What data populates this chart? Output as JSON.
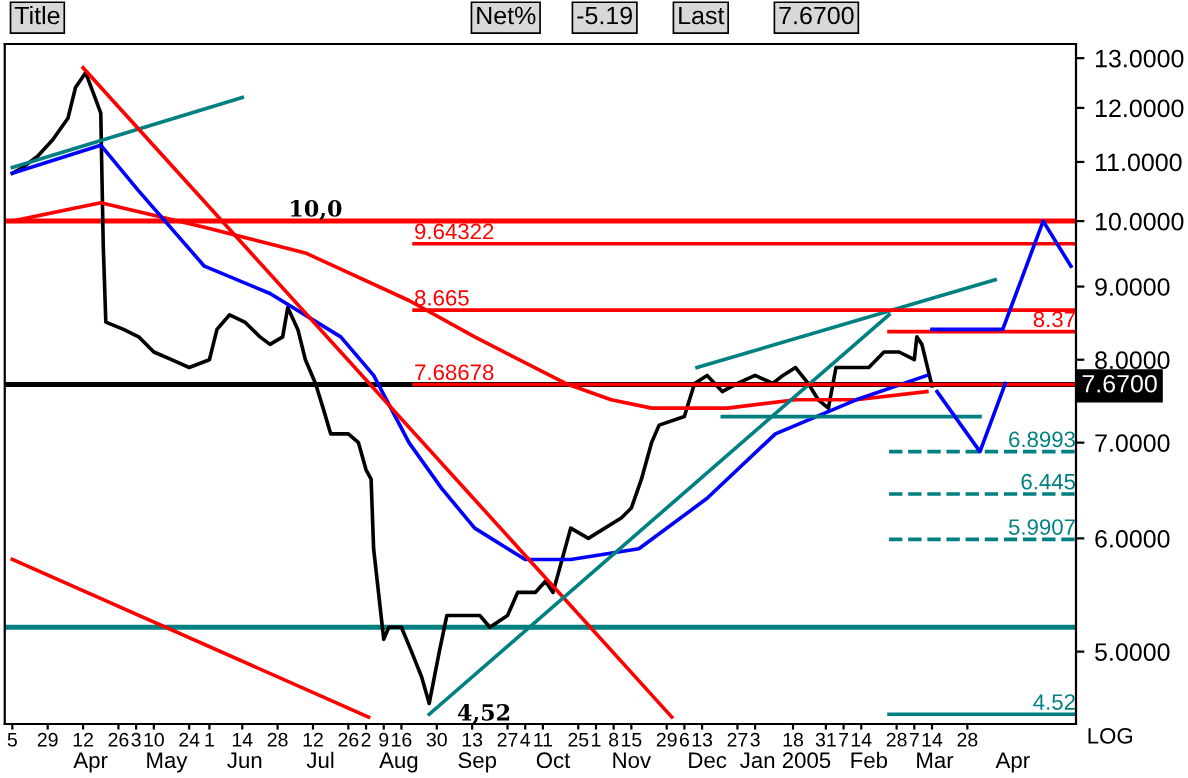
{
  "chart_data": {
    "type": "line",
    "log": "y",
    "grid": false,
    "line_style": "solid",
    "ylabel": "LOG",
    "xlim": [
      "2004-03-12",
      "2005-05-10"
    ],
    "ylim": [
      4.45,
      13.3
    ],
    "yticks": [
      {
        "value": 5,
        "label": "5.0000"
      },
      {
        "value": 6,
        "label": "6.0000"
      },
      {
        "value": 7,
        "label": "7.0000"
      },
      {
        "value": 8,
        "label": "8.0000"
      },
      {
        "value": 9,
        "label": "9.0000"
      },
      {
        "value": 10,
        "label": "10.0000"
      },
      {
        "value": 11,
        "label": "11.0000"
      },
      {
        "value": 12,
        "label": "12.0000"
      },
      {
        "value": 13,
        "label": "13.0000"
      }
    ],
    "xticks": [
      {
        "value": "2004-03-15",
        "label": "5"
      },
      {
        "value": "2004-03-29",
        "label": "29"
      },
      {
        "value": "2004-04-12",
        "label": "12"
      },
      {
        "value": "2004-04-26",
        "label": "26"
      },
      {
        "value": "2004-05-03",
        "label": "3"
      },
      {
        "value": "2004-05-10",
        "label": "10"
      },
      {
        "value": "2004-05-24",
        "label": "24"
      },
      {
        "value": "2004-06-01",
        "label": "1"
      },
      {
        "value": "2004-06-14",
        "label": "14"
      },
      {
        "value": "2004-06-28",
        "label": "28"
      },
      {
        "value": "2004-07-12",
        "label": "12"
      },
      {
        "value": "2004-07-26",
        "label": "26"
      },
      {
        "value": "2004-08-02",
        "label": "2"
      },
      {
        "value": "2004-08-09",
        "label": "9"
      },
      {
        "value": "2004-08-16",
        "label": "16"
      },
      {
        "value": "2004-08-30",
        "label": "30"
      },
      {
        "value": "2004-09-13",
        "label": "13"
      },
      {
        "value": "2004-09-27",
        "label": "27"
      },
      {
        "value": "2004-10-04",
        "label": "4"
      },
      {
        "value": "2004-10-11",
        "label": "11"
      },
      {
        "value": "2004-10-25",
        "label": "25"
      },
      {
        "value": "2004-11-01",
        "label": "1"
      },
      {
        "value": "2004-11-08",
        "label": "8"
      },
      {
        "value": "2004-11-15",
        "label": "15"
      },
      {
        "value": "2004-11-29",
        "label": "29"
      },
      {
        "value": "2004-12-06",
        "label": "6"
      },
      {
        "value": "2004-12-13",
        "label": "13"
      },
      {
        "value": "2004-12-27",
        "label": "27"
      },
      {
        "value": "2005-01-03",
        "label": "3"
      },
      {
        "value": "2005-01-18",
        "label": "18"
      },
      {
        "value": "2005-01-31",
        "label": "31"
      },
      {
        "value": "2005-02-07",
        "label": "7"
      },
      {
        "value": "2005-02-14",
        "label": "14"
      },
      {
        "value": "2005-02-28",
        "label": "28"
      },
      {
        "value": "2005-03-07",
        "label": "7"
      },
      {
        "value": "2005-03-14",
        "label": "14"
      },
      {
        "value": "2005-03-28",
        "label": "28"
      }
    ],
    "x2ticks": [
      {
        "value": "2004-04-15",
        "label": "Apr"
      },
      {
        "value": "2004-05-15",
        "label": "May"
      },
      {
        "value": "2004-06-15",
        "label": "Jun"
      },
      {
        "value": "2004-07-15",
        "label": "Jul"
      },
      {
        "value": "2004-08-15",
        "label": "Aug"
      },
      {
        "value": "2004-09-15",
        "label": "Sep"
      },
      {
        "value": "2004-10-15",
        "label": "Oct"
      },
      {
        "value": "2004-11-15",
        "label": "Nov"
      },
      {
        "value": "2004-12-15",
        "label": "Dec"
      },
      {
        "value": "2005-01-15",
        "label": "Jan 2005"
      },
      {
        "value": "2005-02-17",
        "label": "Feb"
      },
      {
        "value": "2005-03-15",
        "label": "Mar"
      },
      {
        "value": "2005-04-15",
        "label": "Apr"
      }
    ],
    "x2lim": [
      "2004-03-12",
      "2005-05-10"
    ],
    "ref_lines": [
      {
        "axis": "y",
        "value": 10.0,
        "color": "#ff0000",
        "label": "10,0"
      },
      {
        "axis": "y",
        "value": 7.68678,
        "color": "#000000"
      },
      {
        "axis": "y",
        "value": 5.2,
        "color": "#008080"
      }
    ],
    "annotations": [
      "Title",
      "Net%",
      "-5.19",
      "Last",
      "7.6700",
      {
        "text": "4,52",
        "x": "2004-08-27",
        "y": 4.52
      },
      {
        "text": "7.6700",
        "y": 7.67
      }
    ],
    "series": [
      {
        "color": "#000000",
        "x": [
          "2004-03-15",
          "2004-03-19",
          "2004-03-25",
          "2004-03-31",
          "2004-04-06",
          "2004-04-09",
          "2004-04-13",
          "2004-04-16",
          "2004-04-19",
          "2004-04-20",
          "2004-04-21",
          "2004-04-28",
          "2004-05-04",
          "2004-05-10",
          "2004-05-17",
          "2004-05-24",
          "2004-06-01",
          "2004-06-04",
          "2004-06-09",
          "2004-06-15",
          "2004-06-21",
          "2004-06-25",
          "2004-06-30",
          "2004-07-02",
          "2004-07-06",
          "2004-07-09",
          "2004-07-13",
          "2004-07-16",
          "2004-07-19",
          "2004-07-26",
          "2004-07-30",
          "2004-08-02",
          "2004-08-04",
          "2004-08-05",
          "2004-08-09",
          "2004-08-11",
          "2004-08-16",
          "2004-08-20",
          "2004-08-24",
          "2004-08-27",
          "2004-08-31",
          "2004-09-03",
          "2004-09-10",
          "2004-09-16",
          "2004-09-20",
          "2004-09-27",
          "2004-10-01",
          "2004-10-08",
          "2004-10-12",
          "2004-10-15",
          "2004-10-22",
          "2004-10-29",
          "2004-11-11",
          "2004-11-15",
          "2004-11-19",
          "2004-11-23",
          "2004-11-26",
          "2004-12-06",
          "2004-12-10",
          "2004-12-15",
          "2004-12-21",
          "2004-12-27",
          "2005-01-03",
          "2005-01-10",
          "2005-01-14",
          "2005-01-19",
          "2005-01-24",
          "2005-01-28",
          "2005-02-01",
          "2005-02-04",
          "2005-02-10",
          "2005-02-17",
          "2005-02-23",
          "2005-03-01",
          "2005-03-07",
          "2005-03-08",
          "2005-03-10",
          "2005-03-14"
        ],
        "values": [
          10.8,
          10.9,
          11.1,
          11.4,
          11.8,
          12.4,
          12.7,
          12.3,
          11.9,
          9.6,
          8.5,
          8.4,
          8.3,
          8.1,
          8.0,
          7.9,
          8.0,
          8.4,
          8.6,
          8.5,
          8.3,
          8.2,
          8.3,
          8.7,
          8.4,
          8.0,
          7.7,
          7.4,
          7.1,
          7.1,
          7.0,
          6.7,
          6.6,
          5.9,
          5.1,
          5.2,
          5.2,
          5.0,
          4.8,
          4.6,
          5.0,
          5.3,
          5.3,
          5.3,
          5.2,
          5.3,
          5.5,
          5.5,
          5.6,
          5.5,
          6.1,
          6.0,
          6.2,
          6.3,
          6.6,
          7.0,
          7.2,
          7.3,
          7.7,
          7.8,
          7.6,
          7.7,
          7.8,
          7.7,
          7.8,
          7.9,
          7.7,
          7.5,
          7.4,
          7.9,
          7.9,
          7.9,
          8.1,
          8.1,
          8.0,
          8.3,
          8.2,
          7.67
        ]
      },
      {
        "color": "#ff0000",
        "x": [
          "2004-03-15",
          "2004-04-19",
          "2004-05-30",
          "2004-07-09",
          "2004-08-19",
          "2004-09-14",
          "2004-10-20",
          "2004-11-07",
          "2004-11-23",
          "2004-12-23",
          "2005-01-19",
          "2005-02-12",
          "2005-03-12"
        ],
        "values": [
          10.0,
          10.3,
          9.9,
          9.5,
          8.8,
          8.3,
          7.7,
          7.5,
          7.4,
          7.4,
          7.5,
          7.5,
          7.6
        ]
      },
      {
        "color": "#0000ff",
        "x": [
          "2004-03-15",
          "2004-04-19",
          "2004-05-04",
          "2004-05-30",
          "2004-06-25",
          "2004-07-23",
          "2004-08-05",
          "2004-08-19",
          "2004-09-01",
          "2004-09-14",
          "2004-10-04",
          "2004-10-22",
          "2004-11-18",
          "2004-12-15",
          "2005-01-11",
          "2005-02-12",
          "2005-03-12"
        ],
        "values": [
          10.8,
          11.3,
          10.5,
          9.3,
          8.9,
          8.3,
          7.8,
          7.0,
          6.5,
          6.1,
          5.8,
          5.8,
          5.9,
          6.4,
          7.1,
          7.5,
          7.8
        ]
      },
      {
        "color": "#008080",
        "x": [
          "2004-03-15",
          "2004-06-14"
        ],
        "values": [
          10.9,
          12.2
        ]
      },
      {
        "color": "#ff0000",
        "x": [
          "2004-04-12",
          "2004-12-01"
        ],
        "values": [
          12.8,
          4.5
        ]
      },
      {
        "color": "#ff0000",
        "x": [
          "2004-03-15",
          "2004-08-03"
        ],
        "values": [
          5.8,
          4.5
        ]
      },
      {
        "color": "#008080",
        "x": [
          "2004-08-27",
          "2005-02-25"
        ],
        "values": [
          4.52,
          8.6
        ]
      },
      {
        "color": "#008080",
        "x": [
          "2004-12-11",
          "2005-04-08"
        ],
        "values": [
          7.9,
          9.1
        ]
      },
      {
        "color": "#008080",
        "x": [
          "2004-12-21",
          "2005-04-02"
        ],
        "values": [
          7.3,
          7.3
        ]
      },
      {
        "name": "9.64322",
        "color": "#ff0000",
        "x": [
          "2004-08-21",
          "2005-05-10"
        ],
        "values": [
          9.64322,
          9.64322
        ]
      },
      {
        "name": "8.665",
        "color": "#ff0000",
        "x": [
          "2004-08-21",
          "2005-05-10"
        ],
        "values": [
          8.665,
          8.665
        ]
      },
      {
        "name": "7.68678",
        "color": "#ff0000",
        "x": [
          "2004-08-21",
          "2005-05-10"
        ],
        "values": [
          7.68678,
          7.68678
        ]
      },
      {
        "name": "8.37",
        "color": "#ff0000",
        "x": [
          "2005-02-25",
          "2005-05-10"
        ],
        "values": [
          8.37,
          8.37
        ]
      },
      {
        "name": "6.8993",
        "color": "#008080",
        "line_style": "dashed",
        "x": [
          "2005-02-25",
          "2005-05-10"
        ],
        "values": [
          6.8993,
          6.8993
        ]
      },
      {
        "name": "6.445",
        "color": "#008080",
        "line_style": "dashed",
        "x": [
          "2005-02-25",
          "2005-05-10"
        ],
        "values": [
          6.445,
          6.445
        ]
      },
      {
        "name": "5.9907",
        "color": "#008080",
        "line_style": "dashed",
        "x": [
          "2005-02-25",
          "2005-05-10"
        ],
        "values": [
          5.9907,
          5.9907
        ]
      },
      {
        "name": "4.52",
        "color": "#008080",
        "x": [
          "2005-02-25",
          "2005-05-10"
        ],
        "values": [
          4.52,
          4.52
        ]
      },
      {
        "color": "#0000ff",
        "x": [
          "2005-03-14",
          "2005-04-11",
          "2005-04-27",
          "2005-05-08"
        ],
        "values": [
          8.4,
          8.4,
          10.0,
          9.3
        ]
      },
      {
        "color": "#0000ff",
        "x": [
          "2005-03-16",
          "2005-04-02",
          "2005-04-12"
        ],
        "values": [
          7.6,
          6.9,
          7.7
        ]
      }
    ]
  }
}
